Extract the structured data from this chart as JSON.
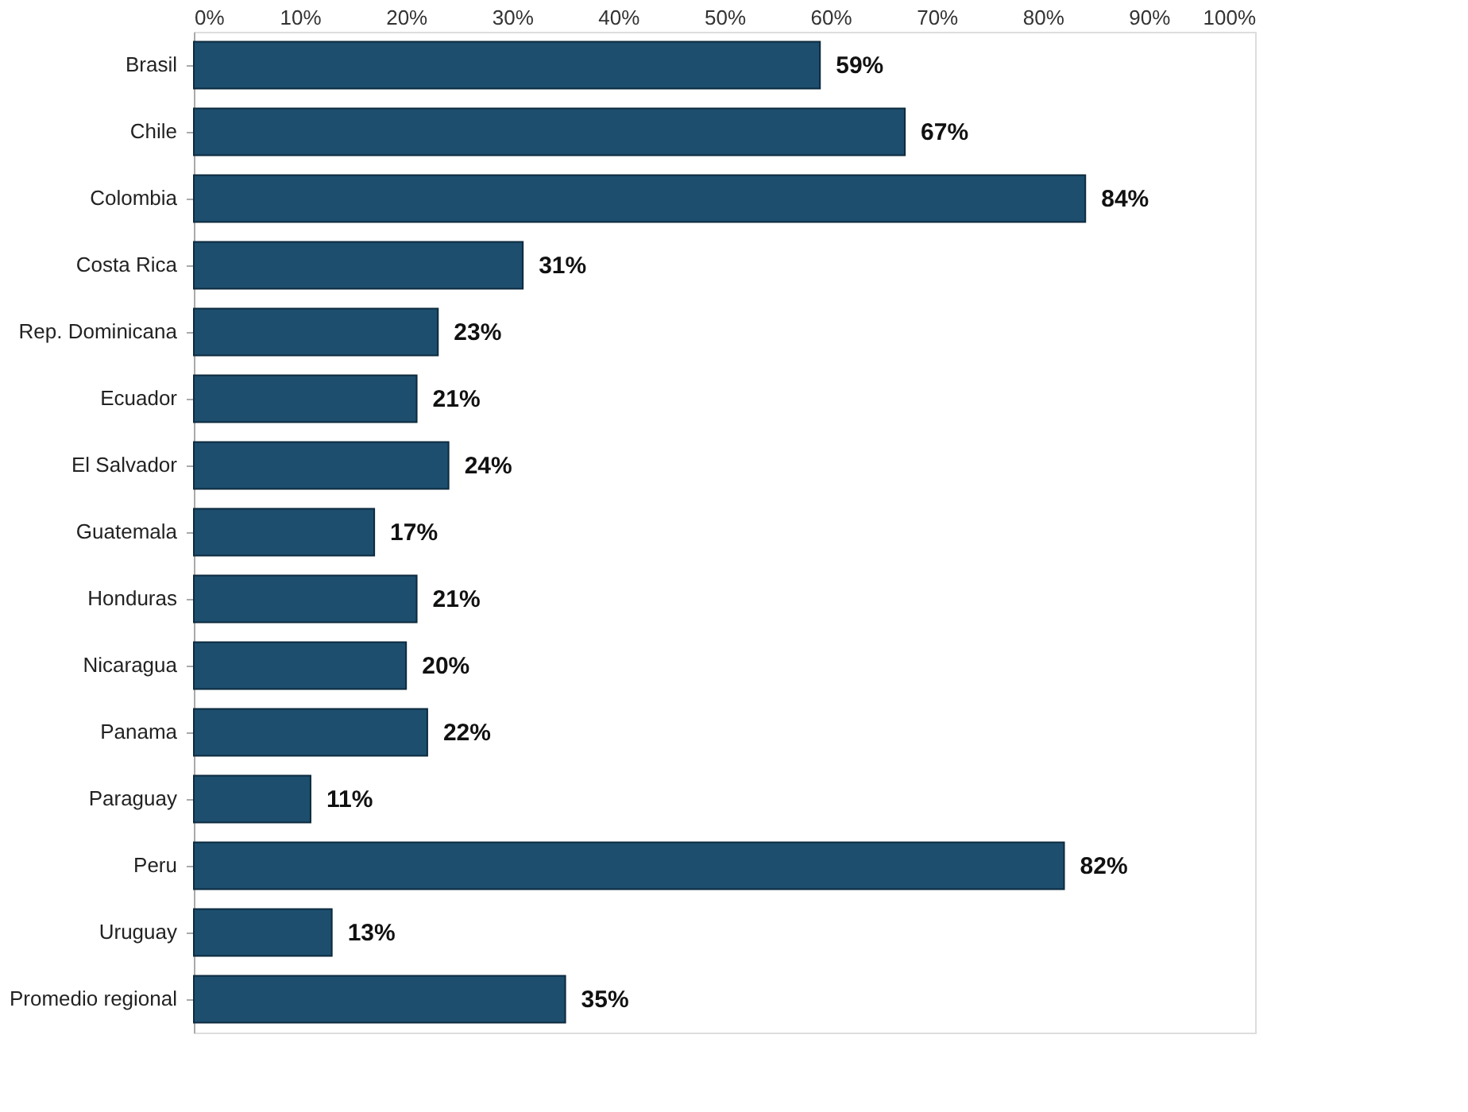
{
  "chart_data": {
    "type": "bar",
    "orientation": "horizontal",
    "categories": [
      "Brasil",
      "Chile",
      "Colombia",
      "Costa Rica",
      "Rep. Dominicana",
      "Ecuador",
      "El Salvador",
      "Guatemala",
      "Honduras",
      "Nicaragua",
      "Panama",
      "Paraguay",
      "Peru",
      "Uruguay",
      "Promedio regional"
    ],
    "values": [
      59,
      67,
      84,
      31,
      23,
      21,
      24,
      17,
      21,
      20,
      22,
      11,
      82,
      13,
      35
    ],
    "value_labels": [
      "59%",
      "67%",
      "84%",
      "31%",
      "23%",
      "21%",
      "24%",
      "17%",
      "21%",
      "20%",
      "22%",
      "11%",
      "82%",
      "13%",
      "35%"
    ],
    "color": "#1d4e6e",
    "xlim": [
      0,
      100
    ],
    "xticks": [
      {
        "value": 0,
        "label": "0%"
      },
      {
        "value": 10,
        "label": "10%"
      },
      {
        "value": 20,
        "label": "20%"
      },
      {
        "value": 30,
        "label": "30%"
      },
      {
        "value": 40,
        "label": "40%"
      },
      {
        "value": 50,
        "label": "50%"
      },
      {
        "value": 60,
        "label": "60%"
      },
      {
        "value": 70,
        "label": "70%"
      },
      {
        "value": 80,
        "label": "80%"
      },
      {
        "value": 90,
        "label": "90%"
      },
      {
        "value": 100,
        "label": "100%"
      }
    ],
    "grid": false
  }
}
